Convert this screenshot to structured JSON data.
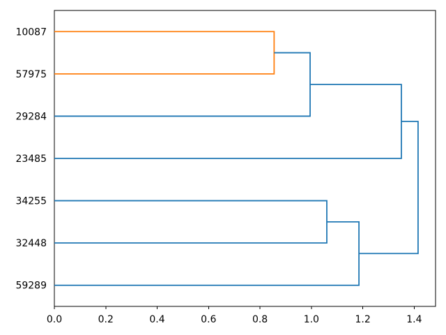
{
  "chart_data": {
    "type": "dendrogram",
    "title": "",
    "orientation": "right",
    "leaf_axis_side": "left",
    "leaf_labels": [
      "10087",
      "57975",
      "29284",
      "23485",
      "34255",
      "32448",
      "59289"
    ],
    "merges": [
      {
        "children": [
          "10087",
          "57975"
        ],
        "distance": 0.855,
        "color": "#ff7f0e"
      },
      {
        "children": [
          "10087+57975",
          "29284"
        ],
        "distance": 0.995,
        "color": "#1f77b4"
      },
      {
        "children": [
          "10087+57975+29284",
          "23485"
        ],
        "distance": 1.35,
        "color": "#1f77b4"
      },
      {
        "children": [
          "34255",
          "32448"
        ],
        "distance": 1.06,
        "color": "#1f77b4"
      },
      {
        "children": [
          "34255+32448",
          "59289"
        ],
        "distance": 1.185,
        "color": "#1f77b4"
      },
      {
        "children": [
          "upper-cluster",
          "lower-cluster"
        ],
        "distance": 1.415,
        "color": "#1f77b4"
      }
    ],
    "links": [
      {
        "xs": [
          0,
          0.855,
          0.855,
          0
        ],
        "ys": [
          65,
          65,
          55,
          55
        ],
        "color": "#ff7f0e"
      },
      {
        "xs": [
          0.855,
          0.995,
          0.995,
          0
        ],
        "ys": [
          60,
          60,
          45,
          45
        ],
        "color": "#1f77b4"
      },
      {
        "xs": [
          0.995,
          1.35,
          1.35,
          0
        ],
        "ys": [
          52.5,
          52.5,
          35,
          35
        ],
        "color": "#1f77b4"
      },
      {
        "xs": [
          0,
          1.06,
          1.06,
          0
        ],
        "ys": [
          25,
          25,
          15,
          15
        ],
        "color": "#1f77b4"
      },
      {
        "xs": [
          1.06,
          1.185,
          1.185,
          0
        ],
        "ys": [
          20,
          20,
          5,
          5
        ],
        "color": "#1f77b4"
      },
      {
        "xs": [
          1.35,
          1.415,
          1.415,
          1.185
        ],
        "ys": [
          43.75,
          43.75,
          12.5,
          12.5
        ],
        "color": "#1f77b4"
      }
    ],
    "x_axis": {
      "label": "",
      "ticks": [
        {
          "value": 0.0,
          "label": "0.0"
        },
        {
          "value": 0.2,
          "label": "0.2"
        },
        {
          "value": 0.4,
          "label": "0.4"
        },
        {
          "value": 0.6,
          "label": "0.6"
        },
        {
          "value": 0.8,
          "label": "0.8"
        },
        {
          "value": 1.0,
          "label": "1.0"
        },
        {
          "value": 1.2,
          "label": "1.2"
        },
        {
          "value": 1.4,
          "label": "1.4"
        }
      ]
    },
    "xlim": [
      0,
      1.483
    ],
    "ylim": [
      0,
      70
    ],
    "grid": false,
    "legend": false,
    "colors": {
      "link_above_threshold": "#1f77b4",
      "cluster_1": "#ff7f0e",
      "axes": "#000000",
      "text": "#000000",
      "background": "#ffffff"
    }
  }
}
